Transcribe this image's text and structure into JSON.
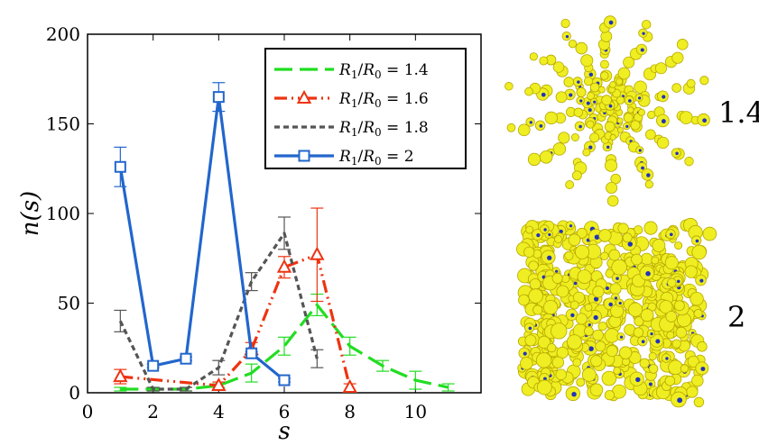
{
  "chart_data": {
    "type": "line",
    "xlabel": "s",
    "ylabel": "n(s)",
    "xlim": [
      0,
      12
    ],
    "ylim": [
      0,
      200
    ],
    "xticks": [
      0,
      2,
      4,
      6,
      8,
      10
    ],
    "yticks": [
      0,
      50,
      100,
      150,
      200
    ],
    "legend_position": "top-right",
    "series": [
      {
        "name": "R1/R0 = 1.4",
        "color": "#22dd22",
        "marker": "none",
        "points": [
          [
            1,
            2
          ],
          [
            2,
            2
          ],
          [
            3,
            2
          ],
          [
            4,
            4
          ],
          [
            5,
            11
          ],
          [
            6,
            26
          ],
          [
            7,
            49
          ],
          [
            8,
            26
          ],
          [
            9,
            15
          ],
          [
            10,
            7
          ],
          [
            11,
            3
          ]
        ],
        "errors": [
          1,
          1,
          1,
          1,
          5,
          5,
          6,
          5,
          3,
          5,
          2
        ]
      },
      {
        "name": "R1/R0 = 1.6",
        "color": "#ee3311",
        "marker": "triangle",
        "points": [
          [
            1,
            9
          ],
          [
            4,
            4
          ],
          [
            5,
            24
          ],
          [
            6,
            70
          ],
          [
            7,
            77
          ],
          [
            8,
            3
          ]
        ],
        "errors": [
          4,
          2,
          4,
          6,
          26,
          2
        ]
      },
      {
        "name": "R1/R0 = 1.8",
        "color": "#555555",
        "marker": "none",
        "points": [
          [
            1,
            40
          ],
          [
            2,
            2
          ],
          [
            3,
            2
          ],
          [
            4,
            14
          ],
          [
            5,
            62
          ],
          [
            6,
            89
          ],
          [
            7,
            19
          ]
        ],
        "errors": [
          6,
          1,
          1,
          4,
          5,
          9,
          5
        ]
      },
      {
        "name": "R1/R0 = 2",
        "color": "#2266cc",
        "marker": "square",
        "points": [
          [
            1,
            126
          ],
          [
            2,
            15
          ],
          [
            3,
            19
          ],
          [
            4,
            165
          ],
          [
            5,
            22
          ],
          [
            6,
            7
          ]
        ],
        "errors": [
          11,
          1,
          1,
          8,
          1,
          1
        ]
      }
    ]
  },
  "legend": [
    {
      "base": "R",
      "sub1": "1",
      "mid": "/R",
      "sub2": "0",
      "value": " = 1.4"
    },
    {
      "base": "R",
      "sub1": "1",
      "mid": "/R",
      "sub2": "0",
      "value": " = 1.6"
    },
    {
      "base": "R",
      "sub1": "1",
      "mid": "/R",
      "sub2": "0",
      "value": " = 1.8"
    },
    {
      "base": "R",
      "sub1": "1",
      "mid": "/R",
      "sub2": "0",
      "value": " = 2"
    }
  ],
  "panels": [
    {
      "label": "1.4"
    },
    {
      "label": "2"
    }
  ],
  "colors": {
    "particle": "#eeee22",
    "particle_shadow": "#b8a800",
    "core": "#2233bb"
  }
}
